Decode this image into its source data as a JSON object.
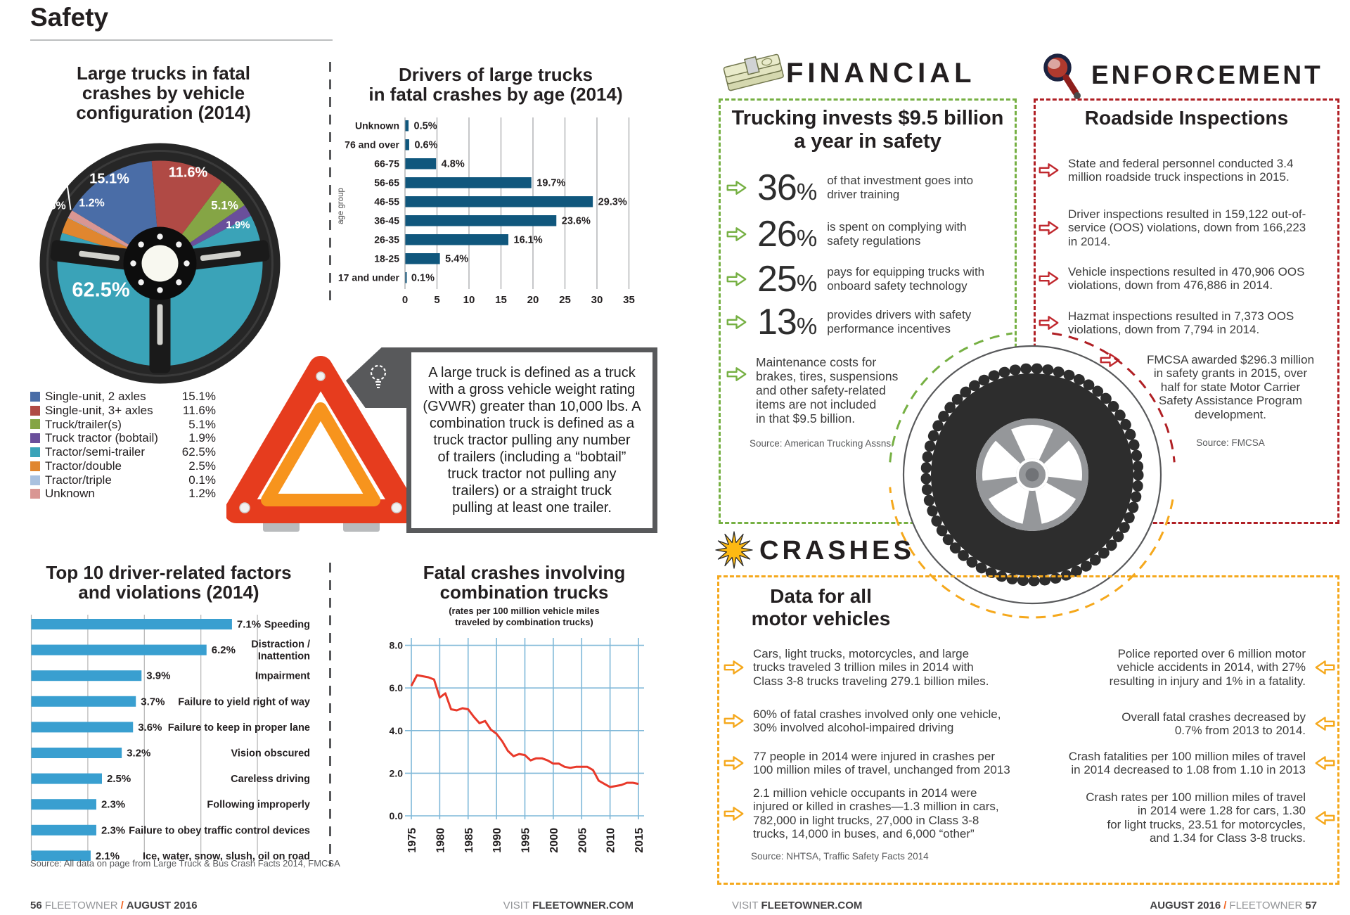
{
  "header": {
    "title": "Safety"
  },
  "definition": {
    "text": "A large truck is defined as a truck\nwith a gross vehicle weight rating\n(GVWR) greater than 10,000 lbs. A\ncombination truck is defined as a\ntruck tractor pulling any number\nof trailers (including a “bobtail”\ntruck tractor not pulling any\ntrailers) or a straight truck\npulling at least one trailer."
  },
  "financial": {
    "heading": "FINANCIAL",
    "box_title_display": "Trucking invests $9.5 billion\na year in safety",
    "stats": [
      {
        "value": "36",
        "suffix": "%",
        "text": "of that investment goes into\ndriver training"
      },
      {
        "value": "26",
        "suffix": "%",
        "text": "is spent on complying with\nsafety regulations"
      },
      {
        "value": "25",
        "suffix": "%",
        "text": "pays for equipping trucks with\nonboard safety technology"
      },
      {
        "value": "13",
        "suffix": "%",
        "text": "provides drivers with safety\nperformance incentives"
      }
    ],
    "note": "Maintenance costs for\nbrakes, tires, suspensions\nand other safety-related\nitems are not included\nin that $9.5 billion.",
    "source": "Source: American Trucking Assns."
  },
  "enforcement": {
    "heading": "ENFORCEMENT",
    "box_title": "Roadside Inspections",
    "items": [
      "State and federal personnel conducted 3.4\nmillion roadside truck inspections in 2015.",
      "Driver inspections resulted in 159,122 out-of-\nservice (OOS) violations, down from 166,223\nin 2014.",
      "Vehicle inspections resulted in 470,906 OOS\nviolations, down from 476,886 in 2014.",
      "Hazmat inspections resulted in 7,373 OOS\nviolations, down from 7,794 in 2014.",
      "FMCSA awarded $296.3 million\nin safety grants in 2015, over\nhalf for state Motor Carrier\nSafety Assistance Program\ndevelopment."
    ],
    "source": "Source: FMCSA"
  },
  "crashes": {
    "heading": "CRASHES",
    "box_title_display": "Data for all\nmotor vehicles",
    "left_items": [
      "Cars, light trucks, motorcycles, and large\ntrucks traveled 3 trillion miles in 2014 with\nClass 3-8 trucks traveling 279.1 billion miles.",
      "60% of fatal crashes involved only one vehicle,\n30% involved alcohol-impaired driving",
      "77 people in 2014 were injured in crashes per\n100 million miles of travel, unchanged from 2013",
      "2.1 million vehicle occupants in 2014 were\ninjured or killed in crashes—1.3 million in cars,\n782,000 in light trucks, 27,000 in Class 3-8\ntrucks, 14,000 in buses, and 6,000 “other”"
    ],
    "right_items": [
      "Police reported over 6 million motor\nvehicle accidents in 2014, with 27%\nresulting in injury and 1% in a fatality.",
      "Overall fatal crashes decreased by\n0.7% from 2013 to 2014.",
      "Crash fatalities per 100 million miles of travel\nin 2014 decreased to 1.08 from 1.10 in 2013",
      "Crash rates per 100 million miles of travel\nin 2014 were 1.28 for cars, 1.30\nfor light trucks, 23.51 for motorcycles,\nand 1.34 for Class 3-8 trucks."
    ],
    "source": "Source: NHTSA, Traffic Safety Facts 2014"
  },
  "page_source": "Source:  All data on page from Large Truck & Bus Crash Facts 2014, FMCSA",
  "footer": {
    "left": {
      "num": "56",
      "brand": "FLEETOWNER",
      "sep": "/",
      "date": "AUGUST 2016"
    },
    "visit_pre": "VISIT",
    "visit_brand": "FLEETOWNER.COM",
    "right": {
      "date": "AUGUST 2016",
      "sep": "/",
      "brand": "FLEETOWNER",
      "num": "57"
    }
  },
  "chart_data": [
    {
      "type": "pie",
      "title": "Large trucks in fatal crashes by vehicle configuration (2014)",
      "title_display": "Large trucks in fatal\ncrashes by vehicle\nconfiguration (2014)",
      "legend_labels": [
        "Single-unit, 2 axles",
        "Single-unit, 3+ axles",
        "Truck/trailer(s)",
        "Truck tractor (bobtail)",
        "Tractor/semi-trailer",
        "Tractor/double",
        "Tractor/triple",
        "Unknown"
      ],
      "legend_values": [
        "15.1%",
        "11.6%",
        "5.1%",
        "1.9%",
        "62.5%",
        "2.5%",
        "0.1%",
        "1.2%"
      ],
      "values": [
        15.1,
        11.6,
        5.1,
        1.9,
        62.5,
        2.5,
        0.1,
        1.2
      ],
      "slice_labels": [
        "15.1%",
        "11.6%",
        "5.1%",
        "1.9%",
        "62.5%",
        "2.5%",
        "<1%",
        "1.2%"
      ],
      "colors": [
        "#4a6da7",
        "#b04a45",
        "#85a545",
        "#6a4f9b",
        "#3aa3b8",
        "#e0862f",
        "#a9c1df",
        "#d99693"
      ],
      "start_angle_deg": -59
    },
    {
      "type": "bar",
      "orientation": "horizontal",
      "title": "Drivers of large trucks in fatal crashes by age (2014)",
      "title_display": "Drivers of large trucks\nin fatal crashes by age (2014)",
      "ylabel": "age group",
      "categories": [
        "Unknown",
        "76 and over",
        "66-75",
        "56-65",
        "46-55",
        "36-45",
        "26-35",
        "18-25",
        "17 and under"
      ],
      "values": [
        0.5,
        0.6,
        4.8,
        19.7,
        29.3,
        23.6,
        16.1,
        5.4,
        0.1
      ],
      "value_labels": [
        "0.5%",
        "0.6%",
        "4.8%",
        "19.7%",
        "29.3%",
        "23.6%",
        "16.1%",
        "5.4%",
        "0.1%"
      ],
      "xlim": [
        0,
        35
      ],
      "xticks": [
        0,
        5,
        10,
        15,
        20,
        25,
        30,
        35
      ],
      "grid": true,
      "bar_color": "#10577d"
    },
    {
      "type": "bar",
      "orientation": "horizontal",
      "title": "Top 10 driver-related factors and violations (2014)",
      "title_display": "Top 10 driver-related factors\nand violations (2014)",
      "categories": [
        "Speeding",
        "Distraction / Inattention",
        "Impairment",
        "Failure to yield right of way",
        "Failure to keep in proper lane",
        "Vision obscured",
        "Careless driving",
        "Following improperly",
        "Failure to obey traffic control devices",
        "Ice, water, snow, slush, oil on road"
      ],
      "values": [
        7.1,
        6.2,
        3.9,
        3.7,
        3.6,
        3.2,
        2.5,
        2.3,
        2.3,
        2.1
      ],
      "value_labels": [
        "7.1%",
        "6.2%",
        "3.9%",
        "3.7%",
        "3.6%",
        "3.2%",
        "2.5%",
        "2.3%",
        "2.3%",
        "2.1%"
      ],
      "xlim": [
        0,
        8
      ],
      "xticks": [
        0,
        2,
        4,
        6,
        8
      ],
      "grid": true,
      "bar_color": "#399fd0"
    },
    {
      "type": "line",
      "title": "Fatal crashes involving combination trucks",
      "title_display": "Fatal crashes involving\ncombination trucks",
      "subtitle_display": "(rates per 100 million vehicle miles\ntraveled by combination trucks)",
      "x": [
        1975,
        1976,
        1977,
        1978,
        1979,
        1980,
        1981,
        1982,
        1983,
        1984,
        1985,
        1986,
        1987,
        1988,
        1989,
        1990,
        1991,
        1992,
        1993,
        1994,
        1995,
        1996,
        1997,
        1998,
        1999,
        2000,
        2001,
        2002,
        2003,
        2004,
        2005,
        2006,
        2007,
        2008,
        2009,
        2010,
        2011,
        2012,
        2013,
        2014,
        2015
      ],
      "values": [
        6.1,
        6.6,
        6.55,
        6.5,
        6.4,
        5.55,
        5.75,
        5.0,
        4.95,
        5.05,
        5.0,
        4.65,
        4.35,
        4.45,
        4.05,
        3.85,
        3.5,
        3.05,
        2.8,
        2.9,
        2.85,
        2.6,
        2.7,
        2.7,
        2.6,
        2.45,
        2.45,
        2.3,
        2.25,
        2.3,
        2.3,
        2.3,
        2.15,
        1.65,
        1.5,
        1.35,
        1.4,
        1.45,
        1.55,
        1.55,
        1.5
      ],
      "ylim": [
        0,
        8
      ],
      "yticks": [
        0,
        2,
        4,
        6,
        8
      ],
      "xticks": [
        1975,
        1980,
        1985,
        1990,
        1995,
        2000,
        2005,
        2010,
        2015
      ],
      "line_color": "#e8392a",
      "grid_color": "#7fb8d8"
    }
  ]
}
